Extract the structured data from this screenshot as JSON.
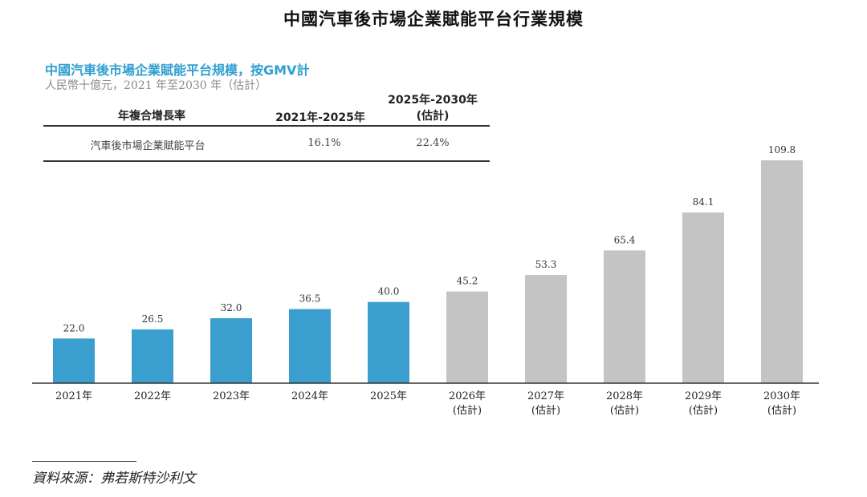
{
  "header": {
    "title": "中國汽車後市場企業賦能平台行業規模"
  },
  "legend_block": {
    "subtitle": "中國汽車後市場企業賦能平台規模，按GMV計",
    "unit": "人民幣十億元，2021 年至2030 年（估計）"
  },
  "cagr_table": {
    "header_label": "年複合增長率",
    "col1": "2021年-2025年",
    "col2_line1": "2025年-2030年",
    "col2_line2": "(估計)",
    "row_label": "汽車後市場企業賦能平台",
    "row_val1": "16.1%",
    "row_val2": "22.4%"
  },
  "chart_data": {
    "type": "bar",
    "title": "中國汽車後市場企業賦能平台規模，按GMV計",
    "categories": [
      "2021年",
      "2022年",
      "2023年",
      "2024年",
      "2025年",
      "2026年",
      "2027年",
      "2028年",
      "2029年",
      "2030年"
    ],
    "category_sub": [
      "",
      "",
      "",
      "",
      "",
      "(估計)",
      "(估計)",
      "(估計)",
      "(估計)",
      "(估計)"
    ],
    "values": [
      22.0,
      26.5,
      32.0,
      36.5,
      40.0,
      45.2,
      53.3,
      65.4,
      84.1,
      109.8
    ],
    "value_labels": [
      "22.0",
      "26.5",
      "32.0",
      "36.5",
      "40.0",
      "45.2",
      "53.3",
      "65.4",
      "84.1",
      "109.8"
    ],
    "colors": {
      "actual": "#3a9fce",
      "estimate": "#c4c4c4"
    },
    "ylim": [
      0,
      110
    ],
    "grid": false
  },
  "footer": {
    "source": "資料來源：弗若斯特沙利文"
  }
}
